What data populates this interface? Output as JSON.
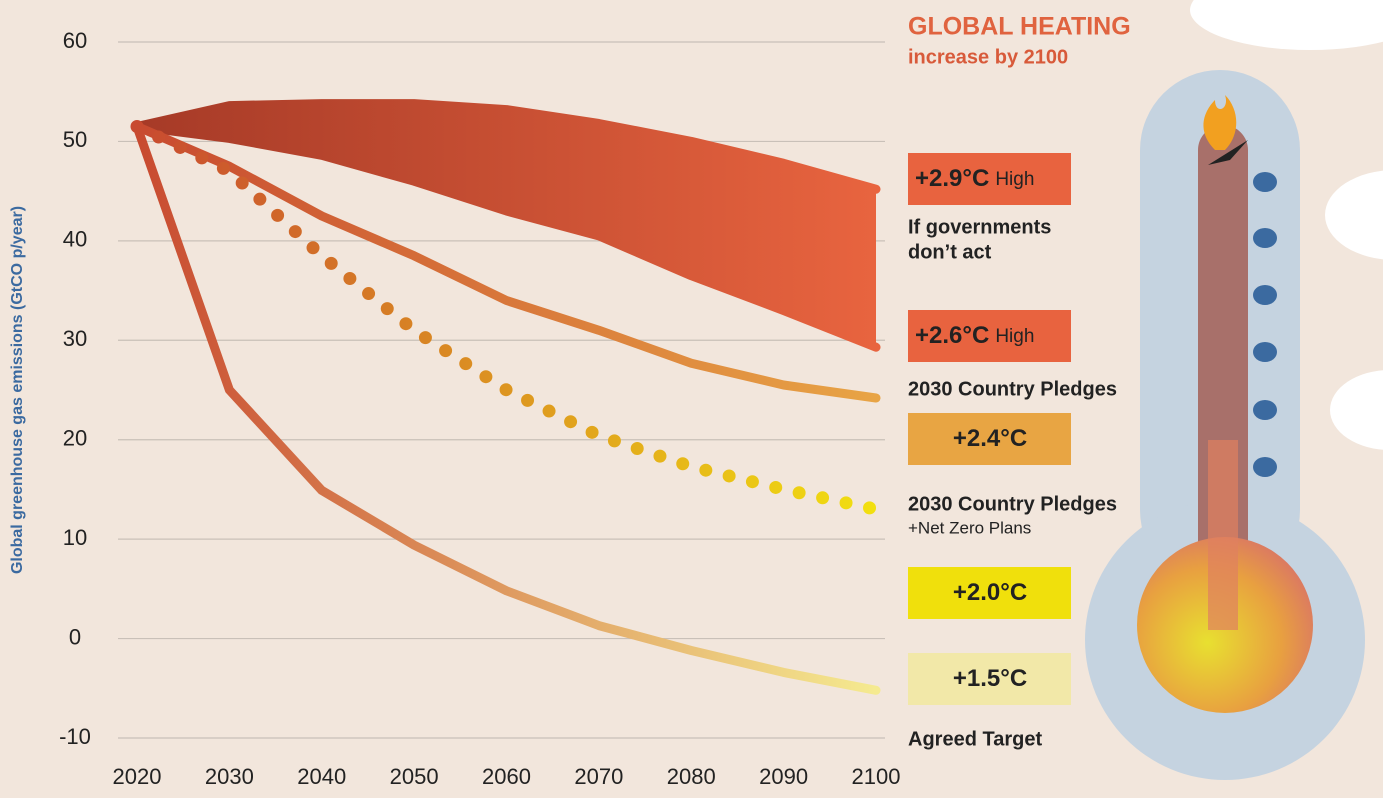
{
  "chart_data": {
    "type": "line",
    "title": "GLOBAL HEATING",
    "subtitle": "increase by 2100",
    "y_label": "Global greenhouse gas emissions (GtCO p/year)",
    "x": [
      2020,
      2030,
      2040,
      2050,
      2060,
      2070,
      2080,
      2090,
      2100
    ],
    "xlim": [
      2020,
      2100
    ],
    "xticks": [
      2020,
      2030,
      2040,
      2050,
      2060,
      2070,
      2080,
      2090,
      2100
    ],
    "ylim": [
      -10,
      60
    ],
    "yticks": [
      -10,
      0,
      10,
      20,
      30,
      40,
      50,
      60
    ],
    "grid": true,
    "band": {
      "upper": [
        51.5,
        53.6,
        53.8,
        53.8,
        53.2,
        51.8,
        50,
        47.8,
        45.2
      ],
      "lower": [
        51.5,
        50.3,
        48.6,
        46,
        43,
        40.5,
        36.5,
        33,
        29.3
      ],
      "colors": [
        "#a63a27",
        "#e8643f"
      ]
    },
    "series": [
      {
        "values": [
          51.5,
          47.5,
          42.5,
          38.5,
          34,
          31,
          27.7,
          25.5,
          24.2
        ],
        "colors": [
          "#c84a30",
          "#e8a445"
        ],
        "style": "solid"
      },
      {
        "values": [
          51.5,
          47,
          38.5,
          31,
          25,
          20.4,
          17.3,
          15,
          13
        ],
        "colors": [
          "#c84a30",
          "#f2e010"
        ],
        "style": "dotted"
      },
      {
        "values": [
          51.5,
          25,
          14.9,
          9.4,
          4.8,
          1.3,
          -1.2,
          -3.4,
          -5.2
        ],
        "colors": [
          "#c84a30",
          "#f5ea90"
        ],
        "style": "solid"
      }
    ],
    "scenarios": [
      {
        "temp": "+2.9°C",
        "level": "High",
        "label": [
          "If governments",
          "don’t act"
        ],
        "color": "#e8633f"
      },
      {
        "temp": "+2.6°C",
        "level": "High",
        "label": [
          "2030 Country Pledges"
        ],
        "color": "#e8633f"
      },
      {
        "temp": "+2.4°C",
        "label": [
          "2030 Country Pledges"
        ],
        "note": "+Net Zero Plans",
        "color": "#e8a543"
      },
      {
        "temp": "+2.0°C",
        "color": "#f0e00c"
      },
      {
        "temp": "+1.5°C",
        "label": [
          "Agreed Target"
        ],
        "color": "#f2e8a8"
      }
    ]
  }
}
